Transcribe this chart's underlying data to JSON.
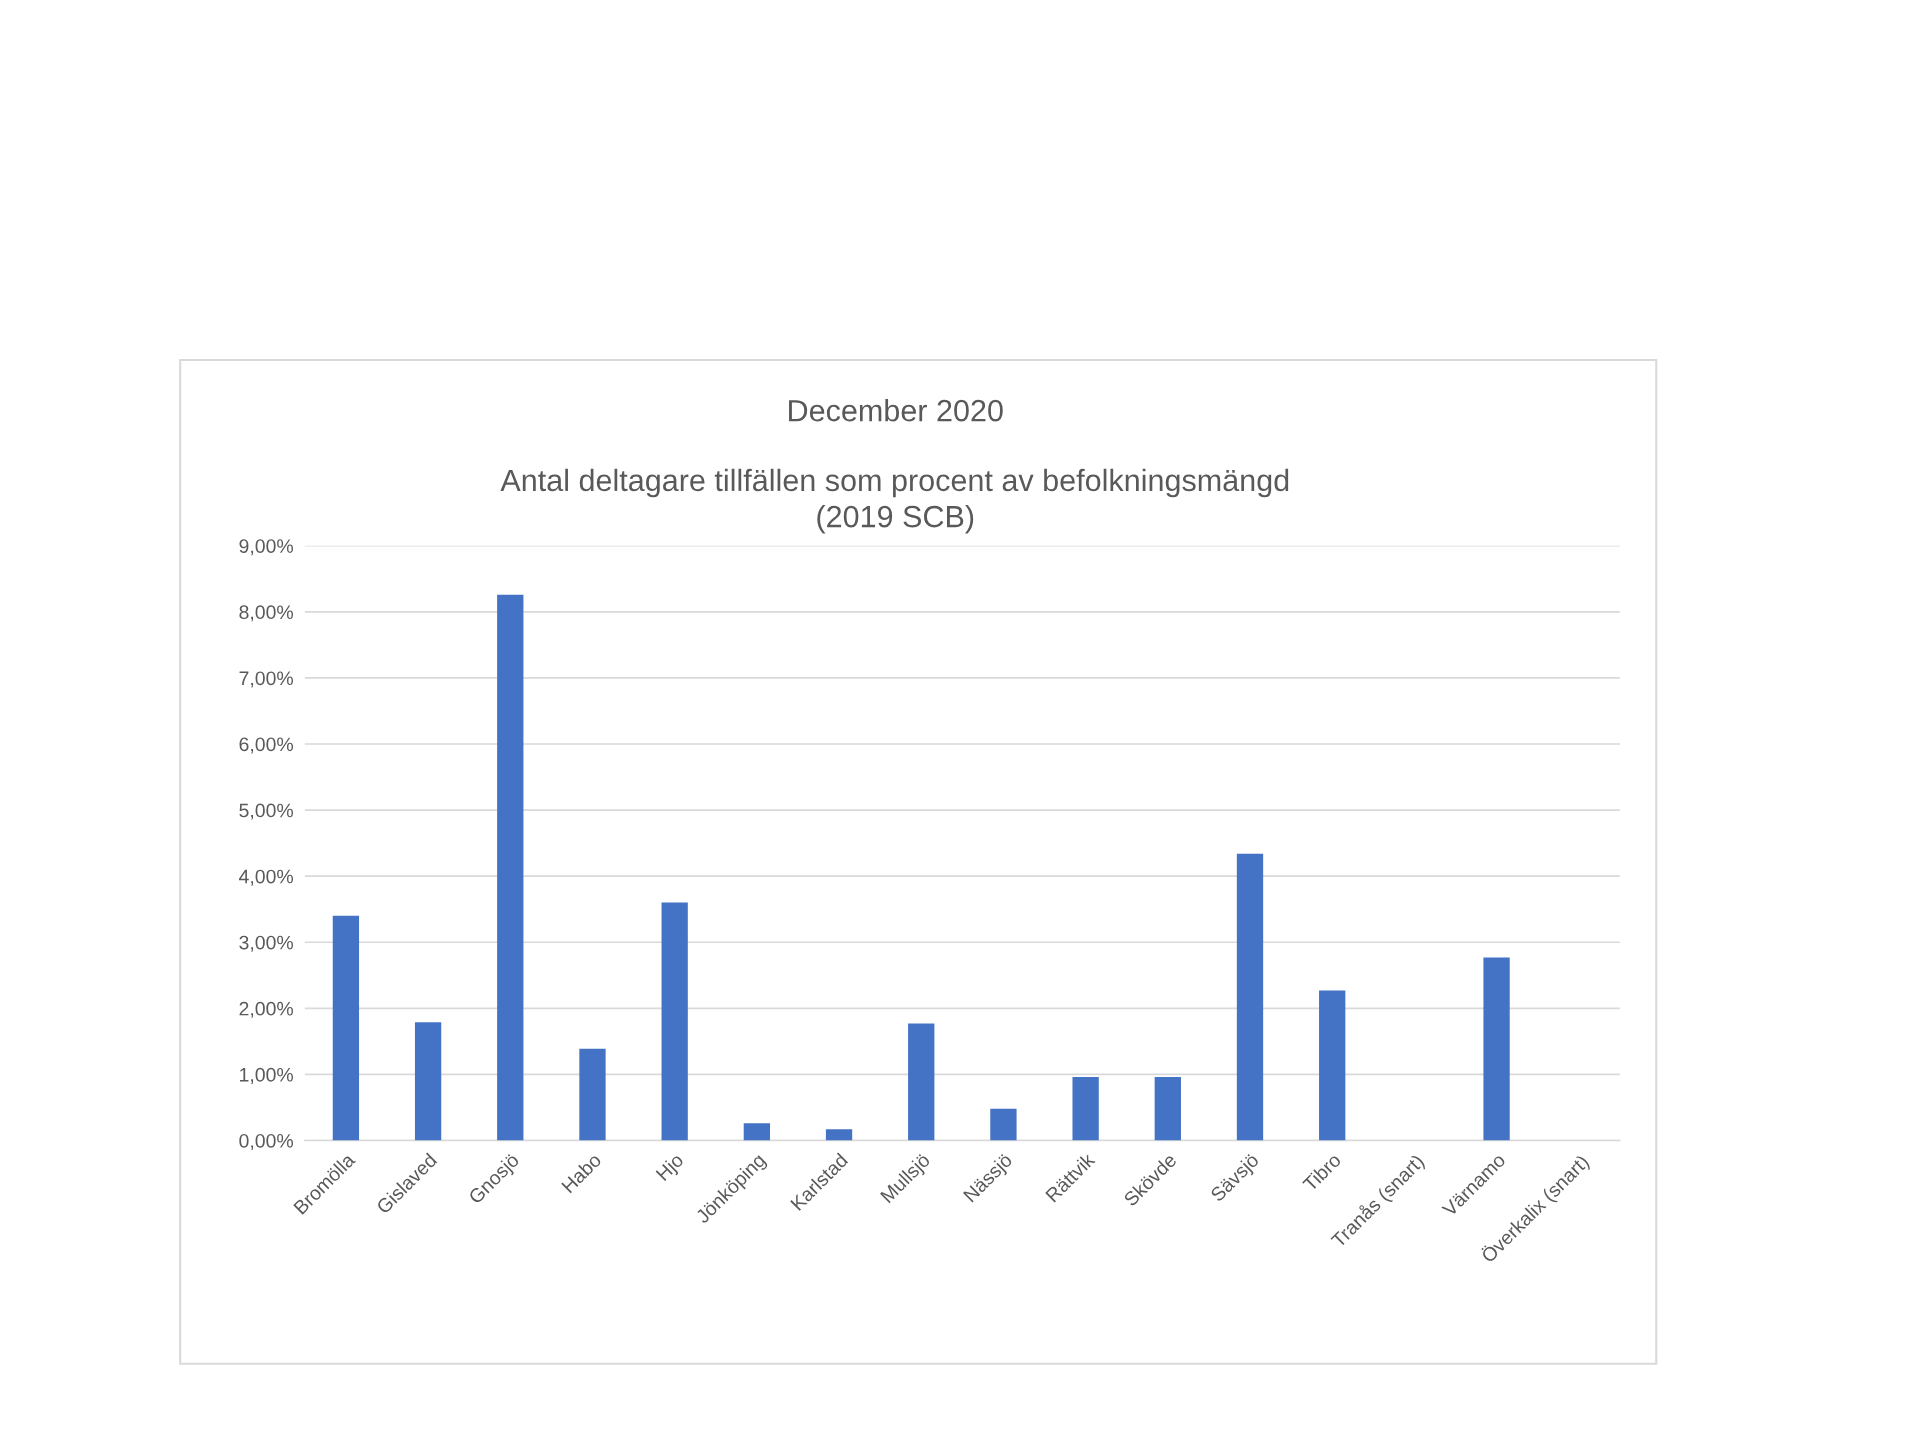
{
  "chart_data": {
    "type": "bar",
    "title": "December 2020",
    "subtitle": "Antal deltagare tillfällen som procent av befolkningsmängd\n(2019 SCB)",
    "categories": [
      "Bromölla",
      "Gislaved",
      "Gnosjö",
      "Habo",
      "Hjo",
      "Jönköping",
      "Karlstad",
      "Mullsjö",
      "Nässjö",
      "Rättvik",
      "Skövde",
      "Sävsjö",
      "Tibro",
      "Tranås (snart)",
      "Värnamo",
      "Överkalix (snart)"
    ],
    "values": [
      3.4,
      1.79,
      8.26,
      1.39,
      3.6,
      0.26,
      0.17,
      1.77,
      0.48,
      0.96,
      0.96,
      4.34,
      2.27,
      null,
      2.77,
      null
    ],
    "color": "#4472c4",
    "ylim": [
      0,
      9
    ],
    "yticks": [
      {
        "value": 0,
        "label": "0,00%"
      },
      {
        "value": 1,
        "label": "1,00%"
      },
      {
        "value": 2,
        "label": "2,00%"
      },
      {
        "value": 3,
        "label": "3,00%"
      },
      {
        "value": 4,
        "label": "4,00%"
      },
      {
        "value": 5,
        "label": "5,00%"
      },
      {
        "value": 6,
        "label": "6,00%"
      },
      {
        "value": 7,
        "label": "7,00%"
      },
      {
        "value": 8,
        "label": "8,00%"
      },
      {
        "value": 9,
        "label": "9,00%"
      }
    ],
    "grid": "y"
  }
}
